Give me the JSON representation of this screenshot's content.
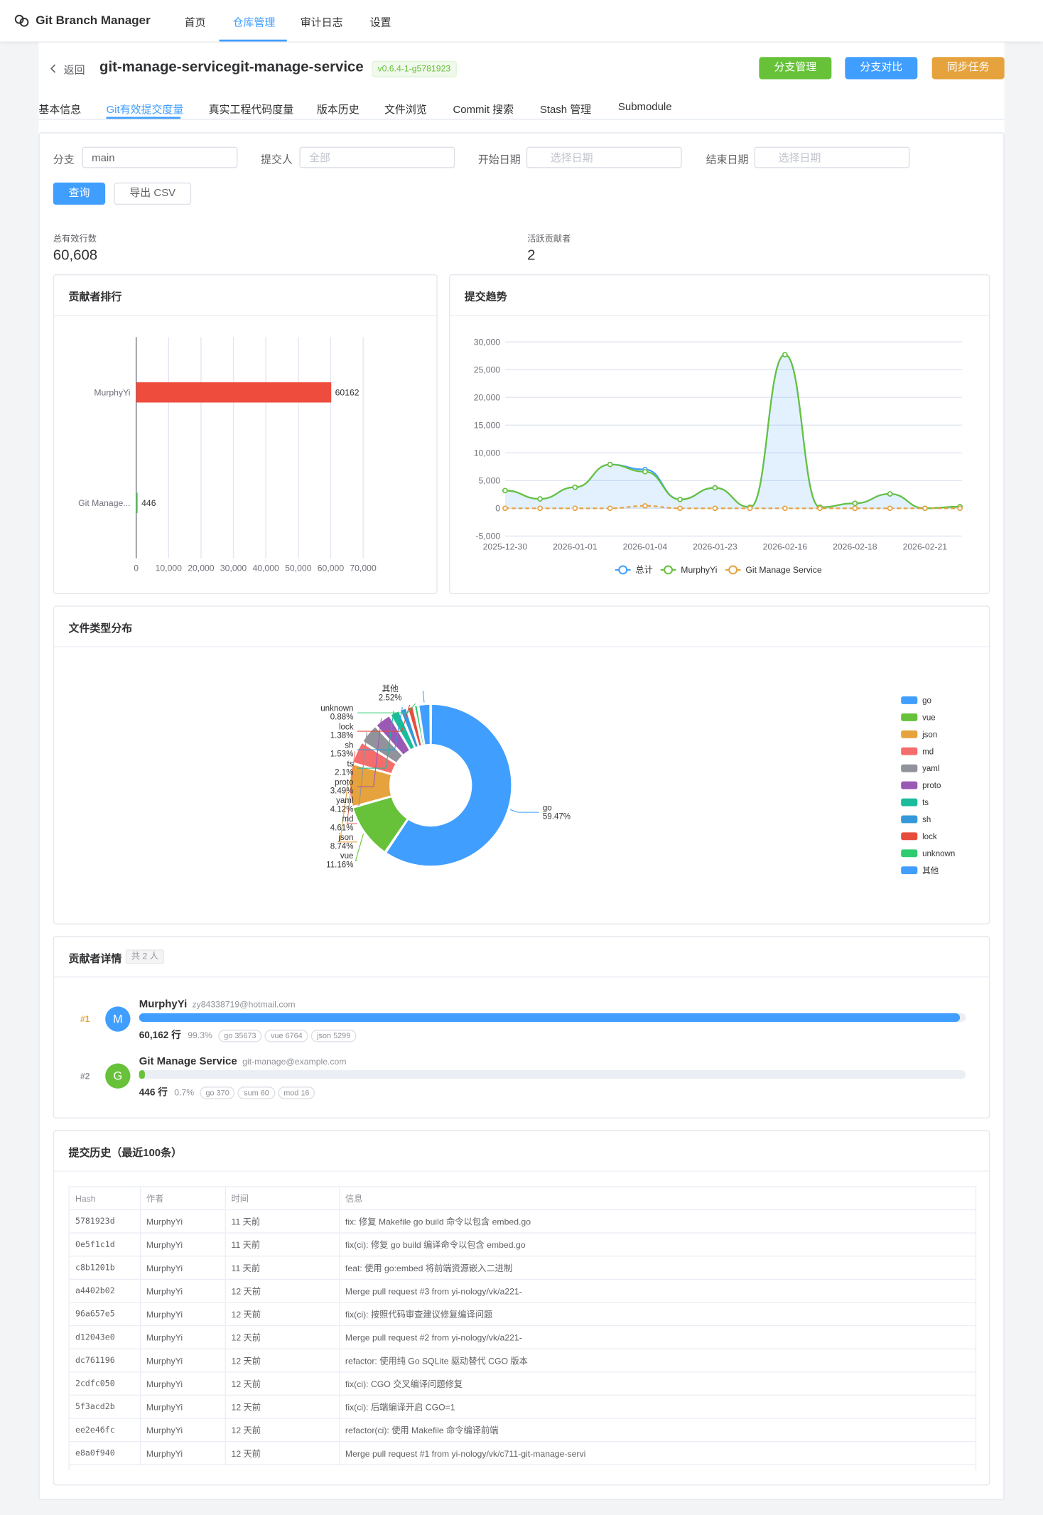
{
  "header": {
    "app_name": "Git Branch Manager",
    "nav": [
      "首页",
      "仓库管理",
      "审计日志",
      "设置"
    ],
    "active_nav": 1
  },
  "repo": {
    "back": "返回",
    "name": "git-manage-servicegit-manage-service",
    "version": "v0.6.4-1-g5781923",
    "actions": [
      "分支管理",
      "分支对比",
      "同步任务"
    ]
  },
  "tabs": {
    "items": [
      "基本信息",
      "Git有效提交度量",
      "真实工程代码度量",
      "版本历史",
      "文件浏览",
      "Commit 搜索",
      "Stash 管理",
      "Submodule"
    ],
    "active": 1
  },
  "filters": {
    "branch_label": "分支",
    "branch_value": "main",
    "committer_label": "提交人",
    "committer_placeholder": "全部",
    "start_label": "开始日期",
    "start_placeholder": "选择日期",
    "end_label": "结束日期",
    "end_placeholder": "选择日期",
    "query": "查询",
    "export": "导出 CSV"
  },
  "stats": [
    {
      "label": "总有效行数",
      "value": "60,608"
    },
    {
      "label": "活跃贡献者",
      "value": "2"
    }
  ],
  "ranking_chart": {
    "type": "bar",
    "orientation": "horizontal",
    "title": "贡献者排行",
    "categories": [
      "MurphyYi",
      "Git Manage..."
    ],
    "values": [
      60162,
      446
    ],
    "colors": [
      "#ee4d3e",
      "#5cc85c"
    ],
    "xlim": [
      0,
      70000
    ],
    "xticks": [
      0,
      {
        "value": 10000,
        "label": "10,000"
      },
      {
        "value": 20000,
        "label": "20,000"
      },
      {
        "value": 30000,
        "label": "30,000"
      },
      {
        "value": 40000,
        "label": "40,000"
      },
      {
        "value": 50000,
        "label": "50,000"
      },
      {
        "value": 60000,
        "label": "60,000"
      },
      {
        "value": 70000,
        "label": "70,000"
      }
    ],
    "grid": true
  },
  "trend_chart": {
    "type": "line",
    "title": "提交趋势",
    "x": [
      "2025-12-30",
      null,
      "2026-01-01",
      null,
      "2026-01-04",
      null,
      "2026-01-23",
      null,
      "2026-02-16",
      null,
      "2026-02-18",
      null,
      "2026-02-21",
      null
    ],
    "series": [
      {
        "name": "总计",
        "color": "#409eff",
        "area": true,
        "values": [
          3200,
          1700,
          3800,
          7900,
          7000,
          1600,
          3700,
          200,
          27700,
          200,
          900,
          2600,
          0,
          300
        ]
      },
      {
        "name": "MurphyYi",
        "color": "#67c23a",
        "values": [
          3200,
          1700,
          3800,
          7900,
          6600,
          1600,
          3700,
          200,
          27700,
          200,
          900,
          2600,
          0,
          300
        ]
      },
      {
        "name": "Git Manage Service",
        "color": "#e6a23c",
        "values": [
          0,
          0,
          0,
          0,
          446,
          0,
          0,
          0,
          0,
          0,
          0,
          0,
          0,
          0
        ]
      }
    ],
    "ylim": [
      -5000,
      30000
    ],
    "yticks": [
      {
        "value": -5000,
        "label": "-5,000"
      },
      0,
      {
        "value": 5000,
        "label": "5,000"
      },
      {
        "value": 10000,
        "label": "10,000"
      },
      {
        "value": 15000,
        "label": "15,000"
      },
      {
        "value": 20000,
        "label": "20,000"
      },
      {
        "value": 25000,
        "label": "25,000"
      },
      {
        "value": 30000,
        "label": "30,000"
      }
    ],
    "grid": true,
    "legend": "bottom"
  },
  "file_type_chart": {
    "type": "pie",
    "title": "文件类型分布",
    "categories": [
      "go",
      "vue",
      "json",
      "md",
      "yaml",
      "proto",
      "ts",
      "sh",
      "lock",
      "unknown",
      "其他"
    ],
    "values": [
      59.47,
      11.16,
      8.74,
      4.61,
      4.12,
      3.49,
      2.1,
      1.53,
      1.38,
      0.88,
      2.52
    ],
    "value_labels": [
      "59.47%",
      "11.16%",
      "8.74%",
      "4.61%",
      "4.12%",
      "3.49%",
      "2.1%",
      "1.53%",
      "1.38%",
      "0.88%",
      "2.52%"
    ],
    "colors": [
      "#409eff",
      "#67c23a",
      "#e6a23c",
      "#f56c6c",
      "#909399",
      "#9b59b6",
      "#1abc9c",
      "#3498db",
      "#e74c3c",
      "#2ecc71",
      "#409eff"
    ],
    "legend": "right"
  },
  "contributors": {
    "title": "贡献者详情",
    "count": "共 2 人",
    "items": [
      {
        "rank": "#1",
        "avatar": "M",
        "name": "MurphyYi",
        "email": "zy84338719@hotmail.com",
        "lines": "60,162 行",
        "share": 99.3,
        "share_label": "99.3%",
        "tags": [
          "go 35673",
          "vue 6764",
          "json 5299"
        ],
        "color": "#409eff",
        "rank_color": "#e6a23c"
      },
      {
        "rank": "#2",
        "avatar": "G",
        "name": "Git Manage Service",
        "email": "git-manage@example.com",
        "lines": "446 行",
        "share": 0.7,
        "share_label": "0.7%",
        "tags": [
          "go 370",
          "sum 60",
          "mod 16"
        ],
        "color": "#67c23a",
        "rank_color": "#909399"
      }
    ]
  },
  "history": {
    "title": "提交历史（最近100条）",
    "columns": [
      "Hash",
      "作者",
      "时间",
      "信息"
    ],
    "rows": [
      [
        "5781923d",
        "MurphyYi",
        "11 天前",
        "fix: 修复 Makefile go build 命令以包含 embed.go"
      ],
      [
        "0e5f1c1d",
        "MurphyYi",
        "11 天前",
        "fix(ci): 修复 go build 编译命令以包含 embed.go"
      ],
      [
        "c8b1201b",
        "MurphyYi",
        "11 天前",
        "feat: 使用 go:embed 将前端资源嵌入二进制"
      ],
      [
        "a4402b02",
        "MurphyYi",
        "12 天前",
        "Merge pull request #3 from yi-nology/vk/a221-"
      ],
      [
        "96a657e5",
        "MurphyYi",
        "12 天前",
        "fix(ci): 按照代码审查建议修复编译问题"
      ],
      [
        "d12043e0",
        "MurphyYi",
        "12 天前",
        "Merge pull request #2 from yi-nology/vk/a221-"
      ],
      [
        "dc761196",
        "MurphyYi",
        "12 天前",
        "refactor: 使用纯 Go SQLite 驱动替代 CGO 版本"
      ],
      [
        "2cdfc050",
        "MurphyYi",
        "12 天前",
        "fix(ci): CGO 交叉编译问题修复"
      ],
      [
        "5f3acd2b",
        "MurphyYi",
        "12 天前",
        "fix(ci): 后端编译开启 CGO=1"
      ],
      [
        "ee2e46fc",
        "MurphyYi",
        "12 天前",
        "refactor(ci): 使用 Makefile 命令编译前端"
      ],
      [
        "e8a0f940",
        "MurphyYi",
        "12 天前",
        "Merge pull request #1 from yi-nology/vk/c711-git-manage-servi"
      ]
    ]
  }
}
